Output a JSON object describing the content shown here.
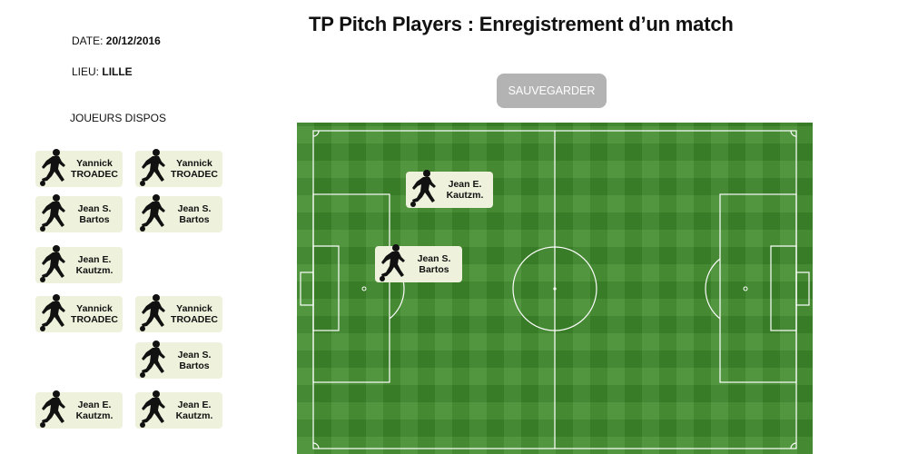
{
  "header": {
    "title": "TP Pitch Players : Enregistrement d’un match"
  },
  "match": {
    "date_label": "DATE:",
    "date_value": "20/12/2016",
    "lieu_label": "LIEU:",
    "lieu_value": "LILLE"
  },
  "available_players": {
    "label": "JOUEURS DISPOS",
    "items": [
      {
        "first": "Yannick",
        "last": "TROADEC"
      },
      {
        "first": "Yannick",
        "last": "TROADEC"
      },
      {
        "first": "Jean S.",
        "last": "Bartos"
      },
      {
        "first": "Jean S.",
        "last": "Bartos"
      },
      {
        "first": "Jean E.",
        "last": "Kautzm."
      },
      {
        "first": "Yannick",
        "last": "TROADEC"
      },
      {
        "first": "Yannick",
        "last": "TROADEC"
      },
      {
        "first": "Jean S.",
        "last": "Bartos"
      },
      {
        "first": "Jean E.",
        "last": "Kautzm."
      },
      {
        "first": "Jean E.",
        "last": "Kautzm."
      }
    ]
  },
  "toolbar": {
    "save_label": "SAUVEGARDER"
  },
  "pitch": {
    "placed_players": [
      {
        "first": "Jean E.",
        "last": "Kautzm."
      },
      {
        "first": "Jean S.",
        "last": "Bartos"
      }
    ]
  },
  "icons": {
    "player": "footballer-silhouette-icon"
  },
  "colors": {
    "card_bg": "#eef2dc",
    "pitch_green": "#3f8a2b",
    "button_bg": "#b3b3b3"
  }
}
